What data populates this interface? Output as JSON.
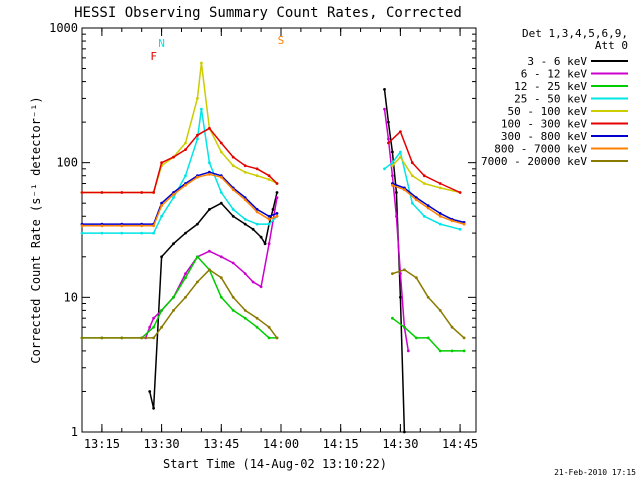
{
  "chart_data": {
    "type": "line",
    "title": "HESSI Observing Summary Count Rates, Corrected",
    "xlabel": "Start Time (14-Aug-02 13:10:22)",
    "ylabel": "Corrected Count Rate (s⁻¹ detector⁻¹)",
    "yscale": "log",
    "xlim": [
      "13:10",
      "14:49"
    ],
    "ylim": [
      1,
      1000
    ],
    "xticks": [
      "13:15",
      "13:30",
      "13:45",
      "14:00",
      "14:15",
      "14:30",
      "14:45"
    ],
    "yticks": [
      "1",
      "10",
      "100",
      "1000"
    ],
    "legend_title": [
      "Det 1,3,4,5,6,9,",
      "Att 0"
    ],
    "legend_position": "right",
    "footer": "21-Feb-2010 17:15",
    "series": [
      {
        "name": "3 - 6 keV",
        "color": "#000000",
        "x": [
          "13:10",
          "13:26",
          "13:27",
          "13:28",
          "13:30",
          "13:33",
          "13:36",
          "13:39",
          "13:42",
          "13:45",
          "13:48",
          "13:51",
          "13:53",
          "13:55",
          "13:56",
          "13:57",
          "13:58",
          "13:59",
          "14:25",
          "14:26",
          "14:27",
          "14:28",
          "14:29",
          "14:30",
          "14:31"
        ],
        "y": [
          null,
          null,
          2,
          1.5,
          20,
          25,
          30,
          35,
          45,
          50,
          40,
          35,
          32,
          28,
          25,
          35,
          45,
          60,
          null,
          350,
          200,
          120,
          60,
          10,
          1
        ]
      },
      {
        "name": "6 - 12 keV",
        "color": "#cc00cc",
        "x": [
          "13:10",
          "13:25",
          "13:26",
          "13:27",
          "13:28",
          "13:30",
          "13:33",
          "13:36",
          "13:39",
          "13:42",
          "13:45",
          "13:48",
          "13:51",
          "13:53",
          "13:55",
          "13:57",
          "13:59",
          "14:25",
          "14:26",
          "14:27",
          "14:28",
          "14:29",
          "14:30",
          "14:31",
          "14:32"
        ],
        "y": [
          null,
          null,
          5,
          6,
          7,
          8,
          10,
          15,
          20,
          22,
          20,
          18,
          15,
          13,
          12,
          25,
          55,
          null,
          250,
          150,
          80,
          40,
          15,
          6,
          4
        ]
      },
      {
        "name": "12 - 25 keV",
        "color": "#00cc00",
        "x": [
          "13:10",
          "13:15",
          "13:20",
          "13:25",
          "13:28",
          "13:30",
          "13:33",
          "13:36",
          "13:39",
          "13:42",
          "13:45",
          "13:48",
          "13:51",
          "13:54",
          "13:57",
          "13:59",
          "14:25",
          "14:28",
          "14:31",
          "14:34",
          "14:37",
          "14:40",
          "14:43",
          "14:46"
        ],
        "y": [
          5,
          5,
          5,
          5,
          6,
          8,
          10,
          14,
          20,
          16,
          10,
          8,
          7,
          6,
          5,
          5,
          null,
          7,
          6,
          5,
          5,
          4,
          4,
          4
        ]
      },
      {
        "name": "25 - 50 keV",
        "color": "#00e5e5",
        "x": [
          "13:10",
          "13:15",
          "13:20",
          "13:25",
          "13:28",
          "13:30",
          "13:33",
          "13:36",
          "13:39",
          "13:40",
          "13:42",
          "13:45",
          "13:48",
          "13:51",
          "13:54",
          "13:57",
          "13:59",
          "14:25",
          "14:26",
          "14:28",
          "14:30",
          "14:33",
          "14:36",
          "14:40",
          "14:45"
        ],
        "y": [
          30,
          30,
          30,
          30,
          30,
          40,
          55,
          80,
          150,
          250,
          100,
          60,
          45,
          38,
          35,
          35,
          40,
          null,
          90,
          100,
          120,
          50,
          40,
          35,
          32
        ]
      },
      {
        "name": "50 - 100 keV",
        "color": "#cccc00",
        "x": [
          "13:10",
          "13:15",
          "13:20",
          "13:25",
          "13:28",
          "13:30",
          "13:33",
          "13:36",
          "13:39",
          "13:40",
          "13:42",
          "13:45",
          "13:48",
          "13:51",
          "13:54",
          "13:57",
          "13:59",
          "14:25",
          "14:28",
          "14:30",
          "14:33",
          "14:36",
          "14:40",
          "14:45"
        ],
        "y": [
          60,
          60,
          60,
          60,
          60,
          95,
          110,
          140,
          300,
          550,
          180,
          120,
          95,
          85,
          80,
          75,
          70,
          null,
          95,
          110,
          80,
          70,
          65,
          60
        ]
      },
      {
        "name": "100 - 300 keV",
        "color": "#e50000",
        "x": [
          "13:10",
          "13:15",
          "13:20",
          "13:25",
          "13:28",
          "13:30",
          "13:33",
          "13:36",
          "13:39",
          "13:42",
          "13:45",
          "13:48",
          "13:51",
          "13:54",
          "13:57",
          "13:59",
          "14:25",
          "14:27",
          "14:30",
          "14:33",
          "14:36",
          "14:40",
          "14:45"
        ],
        "y": [
          60,
          60,
          60,
          60,
          60,
          100,
          110,
          125,
          160,
          180,
          140,
          110,
          95,
          90,
          80,
          70,
          null,
          140,
          170,
          100,
          80,
          70,
          60
        ]
      },
      {
        "name": "300 - 800 keV",
        "color": "#0000cc",
        "x": [
          "13:10",
          "13:15",
          "13:20",
          "13:25",
          "13:28",
          "13:30",
          "13:33",
          "13:36",
          "13:39",
          "13:42",
          "13:45",
          "13:48",
          "13:51",
          "13:54",
          "13:57",
          "13:59",
          "14:25",
          "14:28",
          "14:31",
          "14:34",
          "14:37",
          "14:40",
          "14:43",
          "14:46"
        ],
        "y": [
          35,
          35,
          35,
          35,
          35,
          50,
          60,
          70,
          80,
          85,
          80,
          65,
          55,
          45,
          40,
          42,
          null,
          70,
          65,
          55,
          48,
          42,
          38,
          36
        ]
      },
      {
        "name": "800 - 7000 keV",
        "color": "#ff8000",
        "x": [
          "13:10",
          "13:15",
          "13:20",
          "13:25",
          "13:28",
          "13:30",
          "13:33",
          "13:36",
          "13:39",
          "13:42",
          "13:45",
          "13:48",
          "13:51",
          "13:54",
          "13:57",
          "13:59",
          "14:25",
          "14:28",
          "14:31",
          "14:34",
          "14:37",
          "14:40",
          "14:43",
          "14:46"
        ],
        "y": [
          34,
          34,
          34,
          34,
          34,
          48,
          58,
          68,
          78,
          82,
          78,
          63,
          53,
          43,
          38,
          40,
          null,
          68,
          63,
          53,
          46,
          40,
          37,
          35
        ]
      },
      {
        "name": "7000 - 20000 keV",
        "color": "#8b7a00",
        "x": [
          "13:10",
          "13:15",
          "13:20",
          "13:25",
          "13:28",
          "13:30",
          "13:33",
          "13:36",
          "13:39",
          "13:42",
          "13:45",
          "13:48",
          "13:51",
          "13:54",
          "13:57",
          "13:59",
          "14:25",
          "14:28",
          "14:31",
          "14:34",
          "14:37",
          "14:40",
          "14:43",
          "14:46"
        ],
        "y": [
          5,
          5,
          5,
          5,
          5,
          6,
          8,
          10,
          13,
          16,
          14,
          10,
          8,
          7,
          6,
          5,
          null,
          15,
          16,
          14,
          10,
          8,
          6,
          5
        ]
      }
    ],
    "annotations": [
      {
        "text": "N",
        "color": "#00e5e5",
        "x": "13:30"
      },
      {
        "text": "F",
        "color": "#e50000",
        "x": "13:28"
      },
      {
        "text": "S",
        "color": "#ff8000",
        "x": "14:00"
      }
    ],
    "colors": {
      "cyan": "#00e5e5",
      "red": "#e50000",
      "orange": "#ff8000"
    }
  }
}
